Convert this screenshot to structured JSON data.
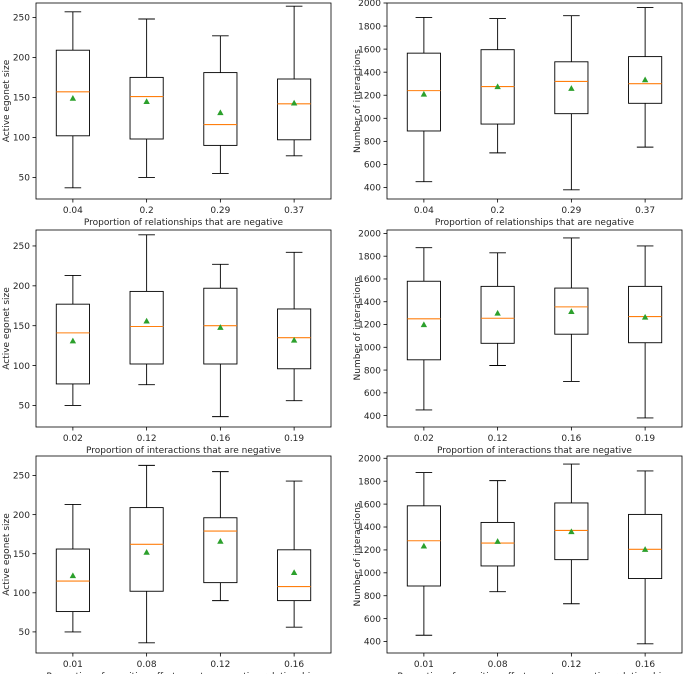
{
  "colors": {
    "median": "#ff7f0e",
    "mean": "#2ca02c",
    "box": "#000000"
  },
  "chart_data": [
    {
      "type": "box",
      "title": "",
      "xlabel": "Proportion of relationships that are negative",
      "ylabel": "Active egonet size",
      "categories": [
        "0.04",
        "0.2",
        "0.29",
        "0.37"
      ],
      "ylim": [
        23,
        268
      ],
      "yticks": [
        50,
        100,
        150,
        200,
        250
      ],
      "boxes": [
        {
          "whislo": 37,
          "q1": 102,
          "med": 157,
          "q3": 209,
          "whishi": 257,
          "mean": 149
        },
        {
          "whislo": 50,
          "q1": 98,
          "med": 151,
          "q3": 175,
          "whishi": 248,
          "mean": 145
        },
        {
          "whislo": 55,
          "q1": 90,
          "med": 116,
          "q3": 181,
          "whishi": 227,
          "mean": 131
        },
        {
          "whislo": 77,
          "q1": 97,
          "med": 142,
          "q3": 173,
          "whishi": 264,
          "mean": 143
        }
      ]
    },
    {
      "type": "box",
      "title": "",
      "xlabel": "Proportion of relationships that are negative",
      "ylabel": "Number of interactions",
      "categories": [
        "0.04",
        "0.2",
        "0.29",
        "0.37"
      ],
      "ylim": [
        300,
        2000
      ],
      "yticks": [
        400,
        600,
        800,
        1000,
        1200,
        1400,
        1600,
        1800,
        2000
      ],
      "boxes": [
        {
          "whislo": 450,
          "q1": 890,
          "med": 1240,
          "q3": 1565,
          "whishi": 1875,
          "mean": 1210
        },
        {
          "whislo": 700,
          "q1": 950,
          "med": 1275,
          "q3": 1595,
          "whishi": 1865,
          "mean": 1275
        },
        {
          "whislo": 380,
          "q1": 1040,
          "med": 1320,
          "q3": 1490,
          "whishi": 1890,
          "mean": 1260
        },
        {
          "whislo": 750,
          "q1": 1130,
          "med": 1300,
          "q3": 1535,
          "whishi": 1960,
          "mean": 1335
        }
      ]
    },
    {
      "type": "box",
      "title": "",
      "xlabel": "Proportion of interactions that are negative",
      "ylabel": "Active egonet size",
      "categories": [
        "0.02",
        "0.12",
        "0.16",
        "0.19"
      ],
      "ylim": [
        23,
        270
      ],
      "yticks": [
        50,
        100,
        150,
        200,
        250
      ],
      "boxes": [
        {
          "whislo": 50,
          "q1": 77,
          "med": 141,
          "q3": 177,
          "whishi": 213,
          "mean": 131
        },
        {
          "whislo": 76,
          "q1": 102,
          "med": 149,
          "q3": 193,
          "whishi": 264,
          "mean": 156
        },
        {
          "whislo": 36,
          "q1": 102,
          "med": 150,
          "q3": 197,
          "whishi": 227,
          "mean": 148
        },
        {
          "whislo": 56,
          "q1": 96,
          "med": 135,
          "q3": 171,
          "whishi": 242,
          "mean": 132
        }
      ]
    },
    {
      "type": "box",
      "title": "",
      "xlabel": "Proportion of interactions that are negative",
      "ylabel": "Number of interactions",
      "categories": [
        "0.02",
        "0.12",
        "0.16",
        "0.19"
      ],
      "ylim": [
        300,
        2030
      ],
      "yticks": [
        400,
        600,
        800,
        1000,
        1200,
        1400,
        1600,
        1800,
        2000
      ],
      "boxes": [
        {
          "whislo": 450,
          "q1": 890,
          "med": 1250,
          "q3": 1580,
          "whishi": 1875,
          "mean": 1200
        },
        {
          "whislo": 840,
          "q1": 1035,
          "med": 1255,
          "q3": 1535,
          "whishi": 1830,
          "mean": 1300
        },
        {
          "whislo": 700,
          "q1": 1115,
          "med": 1355,
          "q3": 1520,
          "whishi": 1960,
          "mean": 1315
        },
        {
          "whislo": 380,
          "q1": 1040,
          "med": 1270,
          "q3": 1535,
          "whishi": 1890,
          "mean": 1265
        }
      ]
    },
    {
      "type": "box",
      "title": "",
      "xlabel": "Proportion of cognitive effort spent on negative relationships",
      "ylabel": "Active egonet size",
      "categories": [
        "0.01",
        "0.08",
        "0.12",
        "0.16"
      ],
      "ylim": [
        23,
        275
      ],
      "yticks": [
        50,
        100,
        150,
        200,
        250
      ],
      "boxes": [
        {
          "whislo": 50,
          "q1": 76,
          "med": 115,
          "q3": 156,
          "whishi": 213,
          "mean": 122
        },
        {
          "whislo": 36,
          "q1": 102,
          "med": 162,
          "q3": 209,
          "whishi": 263,
          "mean": 152
        },
        {
          "whislo": 90,
          "q1": 113,
          "med": 179,
          "q3": 196,
          "whishi": 255,
          "mean": 166
        },
        {
          "whislo": 56,
          "q1": 90,
          "med": 108,
          "q3": 155,
          "whishi": 243,
          "mean": 126
        }
      ]
    },
    {
      "type": "box",
      "title": "",
      "xlabel": "Proportion of cognitive effort spent on negative relationships",
      "ylabel": "Number of interactions",
      "categories": [
        "0.01",
        "0.08",
        "0.12",
        "0.16"
      ],
      "ylim": [
        300,
        2020
      ],
      "yticks": [
        400,
        600,
        800,
        1000,
        1200,
        1400,
        1600,
        1800,
        2000
      ],
      "boxes": [
        {
          "whislo": 455,
          "q1": 885,
          "med": 1280,
          "q3": 1585,
          "whishi": 1875,
          "mean": 1235
        },
        {
          "whislo": 835,
          "q1": 1060,
          "med": 1260,
          "q3": 1440,
          "whishi": 1805,
          "mean": 1275
        },
        {
          "whislo": 730,
          "q1": 1115,
          "med": 1370,
          "q3": 1610,
          "whishi": 1950,
          "mean": 1360
        },
        {
          "whislo": 380,
          "q1": 950,
          "med": 1205,
          "q3": 1510,
          "whishi": 1890,
          "mean": 1205
        }
      ]
    }
  ]
}
